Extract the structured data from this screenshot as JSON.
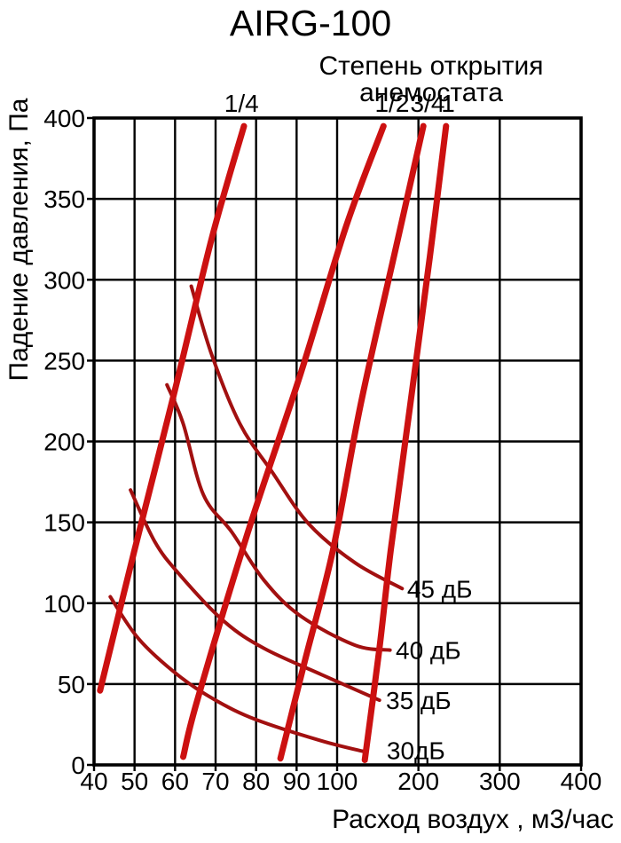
{
  "page": {
    "background": "#ffffff"
  },
  "chart_data": {
    "type": "line",
    "title": "AIRG-100",
    "top_axis_title": "Степень открытия анемостата",
    "xlabel": "Расход воздух , м3/час",
    "ylabel": "Падение давления, Па",
    "x_ticks": [
      40,
      50,
      60,
      70,
      80,
      90,
      100,
      200,
      300,
      400
    ],
    "y_ticks": [
      0,
      50,
      100,
      150,
      200,
      250,
      300,
      350,
      400
    ],
    "axis": {
      "x_scale": "piecewise-linear: 40-100 linear on left half, 100-400 linear on right half",
      "x_anchor_values": [
        40,
        100,
        400
      ],
      "xlim": [
        40,
        400
      ],
      "ylim": [
        0,
        400
      ],
      "grid": true,
      "legend_position": "labels-on-curves"
    },
    "colors": {
      "opening_curves": "#cc1111",
      "noise_curves": "#a21010",
      "grid": "#000000",
      "text": "#000000",
      "background": "#ffffff"
    },
    "opening_series": [
      {
        "name": "1/4",
        "label_at_flow": 76.4,
        "points": [
          [
            41.5,
            46
          ],
          [
            50,
            133
          ],
          [
            60,
            232
          ],
          [
            69,
            325
          ],
          [
            77,
            395
          ]
        ]
      },
      {
        "name": "1/2",
        "label_at_flow": 167.6,
        "points": [
          [
            62,
            5
          ],
          [
            65.5,
            40
          ],
          [
            78,
            144
          ],
          [
            91,
            242
          ],
          [
            111,
            333
          ],
          [
            157,
            395
          ]
        ]
      },
      {
        "name": "3/4",
        "label_at_flow": 211.3,
        "points": [
          [
            86,
            4
          ],
          [
            92,
            64
          ],
          [
            99,
            133
          ],
          [
            129,
            223
          ],
          [
            171,
            317
          ],
          [
            206,
            395
          ]
        ]
      },
      {
        "name": "1",
        "label_at_flow": 236.4,
        "points": [
          [
            134,
            3
          ],
          [
            152,
            72
          ],
          [
            166,
            133
          ],
          [
            190,
            223
          ],
          [
            214,
            314
          ],
          [
            234,
            395
          ]
        ]
      }
    ],
    "noise_series": [
      {
        "name": "45 дБ",
        "label_at": [
          186,
          109
        ],
        "points": [
          [
            64,
            296
          ],
          [
            69,
            254
          ],
          [
            76,
            211
          ],
          [
            84,
            181
          ],
          [
            93,
            149
          ],
          [
            122,
            125
          ],
          [
            180,
            109
          ]
        ]
      },
      {
        "name": "40 дБ",
        "label_at": [
          172,
          71
        ],
        "points": [
          [
            58,
            235
          ],
          [
            62,
            211
          ],
          [
            67,
            167
          ],
          [
            74,
            144
          ],
          [
            82,
            114
          ],
          [
            91,
            92
          ],
          [
            122,
            74
          ],
          [
            165,
            71
          ]
        ]
      },
      {
        "name": "35 дБ",
        "label_at": [
          160,
          40
        ],
        "points": [
          [
            49,
            170
          ],
          [
            55,
            138
          ],
          [
            61,
            118
          ],
          [
            72,
            89
          ],
          [
            82,
            72
          ],
          [
            96,
            56
          ],
          [
            152,
            40
          ]
        ]
      },
      {
        "name": "30дБ",
        "label_at": [
          161,
          9
        ],
        "points": [
          [
            44,
            104
          ],
          [
            51,
            78
          ],
          [
            61,
            55
          ],
          [
            70,
            40
          ],
          [
            80,
            28
          ],
          [
            96,
            15
          ],
          [
            135,
            8
          ]
        ]
      }
    ]
  }
}
